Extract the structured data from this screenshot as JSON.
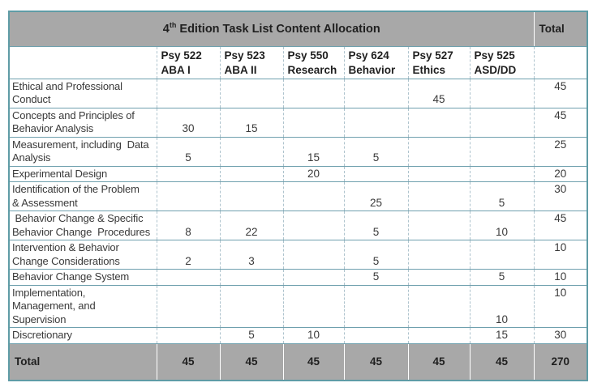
{
  "title": {
    "before_sup": "4",
    "sup": "th",
    "after_sup": " Edition Task List Content Allocation"
  },
  "total_header": "Total",
  "columns": [
    {
      "code": "Psy 522",
      "name": "ABA I"
    },
    {
      "code": "Psy 523",
      "name": "ABA II"
    },
    {
      "code": "Psy 550",
      "name": "Research"
    },
    {
      "code": "Psy 624",
      "name": "Behavior"
    },
    {
      "code": "Psy 527",
      "name": "Ethics"
    },
    {
      "code": "Psy 525",
      "name": "ASD/DD"
    }
  ],
  "rows": [
    {
      "label": "Ethical and Professional\nConduct",
      "values": [
        "",
        "",
        "",
        "",
        "45",
        ""
      ],
      "total": "45"
    },
    {
      "label": "Concepts and Principles of\nBehavior Analysis",
      "values": [
        "30",
        "15",
        "",
        "",
        "",
        ""
      ],
      "total": "45"
    },
    {
      "label": "Measurement, including  Data\nAnalysis",
      "values": [
        "5",
        "",
        "15",
        "5",
        "",
        ""
      ],
      "total": "25"
    },
    {
      "label": "Experimental Design",
      "values": [
        "",
        "",
        "20",
        "",
        "",
        ""
      ],
      "total": "20"
    },
    {
      "label": "Identification of the Problem\n& Assessment",
      "values": [
        "",
        "",
        "",
        "25",
        "",
        "5"
      ],
      "total": "30"
    },
    {
      "label": " Behavior Change & Specific\nBehavior Change  Procedures",
      "values": [
        "8",
        "22",
        "",
        "5",
        "",
        "10"
      ],
      "total": "45"
    },
    {
      "label": "Intervention & Behavior\nChange Considerations",
      "values": [
        "2",
        "3",
        "",
        "5",
        "",
        ""
      ],
      "total": "10"
    },
    {
      "label": "Behavior Change System",
      "values": [
        "",
        "",
        "",
        "5",
        "",
        "5"
      ],
      "total": "10"
    },
    {
      "label": "Implementation,\nManagement, and\nSupervision",
      "values": [
        "",
        "",
        "",
        "",
        "",
        "10"
      ],
      "total": "10"
    },
    {
      "label": "Discretionary",
      "values": [
        "",
        "5",
        "10",
        "",
        "",
        "15"
      ],
      "total": "30"
    }
  ],
  "footer": {
    "label": "Total",
    "values": [
      "45",
      "45",
      "45",
      "45",
      "45",
      "45"
    ],
    "grand_total": "270"
  },
  "colors": {
    "gray": "#a8a8a8",
    "teal": "#5f9ca6",
    "rowline": "#6fa0ae",
    "dash": "#aec3cd",
    "body_text": "#3a3a3a",
    "dark_text": "#1f1f1f",
    "page_bg": "#ffffff"
  }
}
